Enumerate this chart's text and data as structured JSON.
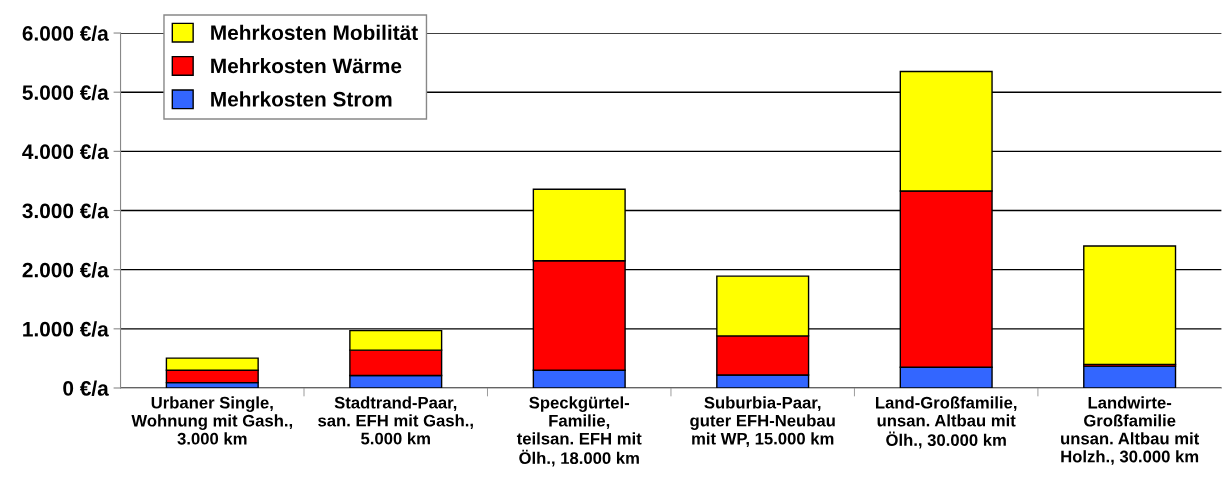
{
  "chart_data": {
    "type": "bar",
    "stacked": true,
    "categories": [
      "Urbaner Single,\nWohnung mit Gash.,\n3.000 km",
      "Stadtrand-Paar,\nsan. EFH mit Gash.,\n5.000 km",
      "Speckgürtel-\nFamilie,\nteilsan. EFH mit\nÖlh., 18.000 km",
      "Suburbia-Paar,\nguter EFH-Neubau\nmit WP, 15.000 km",
      "Land-Großfamilie,\nunsan. Altbau mit\nÖlh., 30.000 km",
      "Landwirte-\nGroßfamilie\nunsan. Altbau mit\nHolzh., 30.000 km"
    ],
    "series": [
      {
        "name": "Mehrkosten Strom",
        "color": "#3366ff",
        "values": [
          90,
          210,
          300,
          220,
          350,
          370
        ]
      },
      {
        "name": "Mehrkosten Wärme",
        "color": "#ff0000",
        "values": [
          210,
          430,
          1850,
          660,
          2980,
          30
        ]
      },
      {
        "name": "Mehrkosten Mobilität",
        "color": "#ffff00",
        "values": [
          205,
          330,
          1210,
          1010,
          2020,
          2000
        ]
      }
    ],
    "ylim": [
      0,
      6000
    ],
    "yticks": [
      {
        "value": 0,
        "label": "0 €/a"
      },
      {
        "value": 1000,
        "label": "1.000 €/a"
      },
      {
        "value": 2000,
        "label": "2.000 €/a"
      },
      {
        "value": 3000,
        "label": "3.000 €/a"
      },
      {
        "value": 4000,
        "label": "4.000 €/a"
      },
      {
        "value": 5000,
        "label": "5.000 €/a"
      },
      {
        "value": 6000,
        "label": "6.000 €/a"
      }
    ],
    "grid": "y",
    "legend": "top left"
  }
}
